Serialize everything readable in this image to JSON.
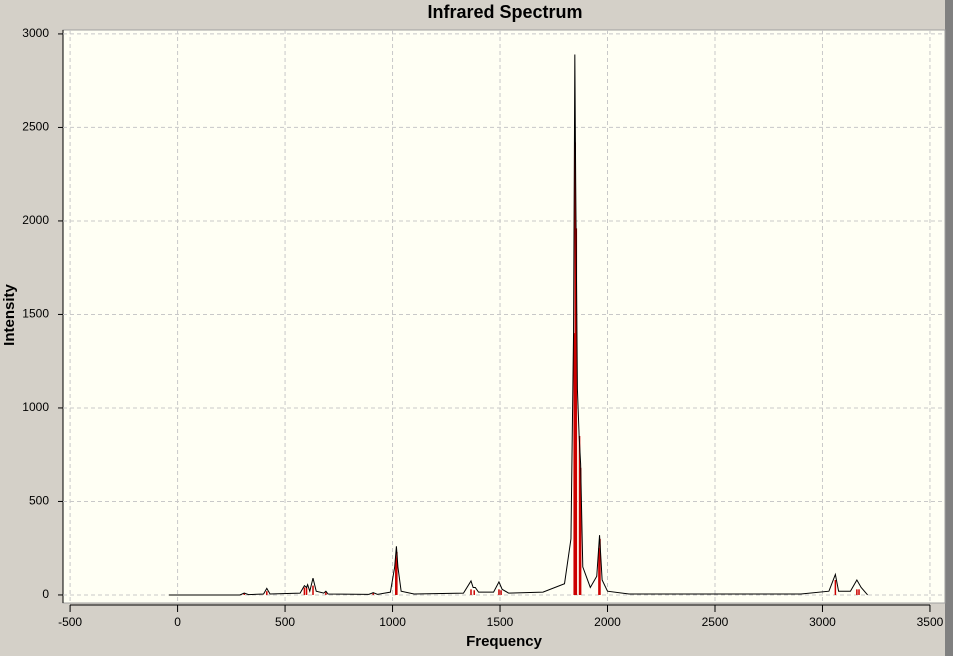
{
  "chart_data": {
    "type": "line",
    "title": "Infrared Spectrum",
    "x_label": "Frequency",
    "y_label": "Intensity",
    "xlim": [
      -533,
      3570
    ],
    "ylim": [
      -43,
      3021
    ],
    "xticks": [
      -500,
      0,
      500,
      1000,
      1500,
      2000,
      2500,
      3000,
      3500
    ],
    "yticks": [
      0,
      500,
      1000,
      1500,
      2000,
      2500,
      3000
    ],
    "grid": true,
    "series": [
      {
        "type": "stick",
        "color": "#cc0000",
        "x": [
          310,
          415,
          590,
          600,
          630,
          690,
          910,
          1015,
          1020,
          1365,
          1380,
          1495,
          1505,
          1845,
          1850,
          1855,
          1870,
          1875,
          1960,
          1965,
          3060,
          3160,
          3170
        ],
        "values": [
          10,
          20,
          40,
          40,
          50,
          15,
          10,
          200,
          230,
          30,
          25,
          30,
          25,
          1400,
          2420,
          1960,
          850,
          680,
          250,
          300,
          80,
          30,
          30
        ]
      },
      {
        "type": "line",
        "color": "#000000",
        "x": [
          -40,
          290,
          310,
          330,
          400,
          415,
          430,
          570,
          590,
          600,
          605,
          615,
          630,
          645,
          680,
          690,
          700,
          890,
          910,
          930,
          990,
          1010,
          1018,
          1025,
          1040,
          1100,
          1330,
          1365,
          1375,
          1385,
          1400,
          1470,
          1495,
          1510,
          1540,
          1700,
          1800,
          1830,
          1842,
          1848,
          1852,
          1860,
          1868,
          1875,
          1885,
          1920,
          1950,
          1963,
          1975,
          2000,
          2100,
          2900,
          3030,
          3060,
          3075,
          3130,
          3160,
          3180,
          3210
        ],
        "values": [
          0,
          0,
          10,
          2,
          5,
          35,
          5,
          10,
          50,
          40,
          55,
          20,
          90,
          20,
          10,
          20,
          5,
          3,
          12,
          3,
          15,
          150,
          260,
          150,
          20,
          5,
          10,
          75,
          40,
          40,
          15,
          15,
          70,
          30,
          10,
          15,
          60,
          300,
          1400,
          2890,
          2200,
          1100,
          850,
          700,
          150,
          40,
          100,
          320,
          80,
          20,
          5,
          5,
          20,
          110,
          20,
          20,
          80,
          40,
          0
        ]
      }
    ]
  }
}
